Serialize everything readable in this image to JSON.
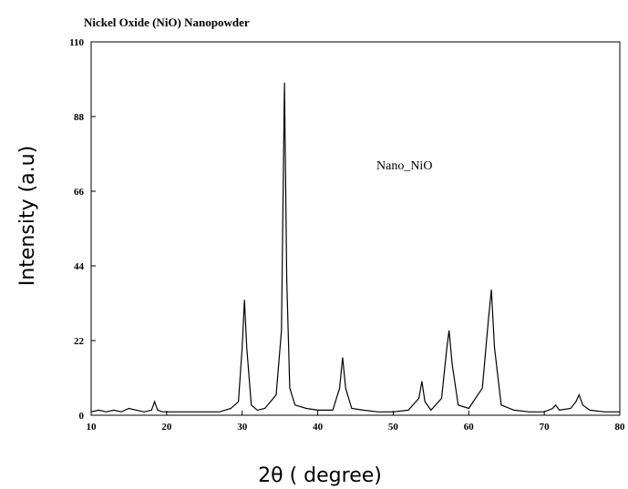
{
  "chart_data": {
    "type": "line",
    "title": "Nickel Oxide (NiO) Nanopowder",
    "annotation": "Nano_NiO",
    "xlabel": "2θ ( degree)",
    "ylabel": "Intensity (a.u)",
    "xlim": [
      10,
      80
    ],
    "ylim": [
      0,
      110
    ],
    "xticks": [
      10,
      20,
      30,
      40,
      50,
      60,
      70,
      80
    ],
    "yticks": [
      0,
      22,
      44,
      66,
      88,
      110
    ],
    "grid": false,
    "series": [
      {
        "x": [
          10,
          11,
          12,
          13,
          14,
          15,
          16,
          17,
          18,
          18.4,
          18.8,
          19.5,
          21,
          23,
          25,
          27,
          28.5,
          29.5,
          30.0,
          30.3,
          30.6,
          31.2,
          32,
          33,
          34.5,
          35.2,
          35.6,
          35.9,
          36.3,
          37,
          38.5,
          40,
          42,
          42.9,
          43.3,
          43.7,
          44.5,
          46,
          48,
          50,
          52,
          53.4,
          53.8,
          54.2,
          55,
          56.4,
          57.1,
          57.4,
          57.8,
          58.6,
          60,
          61.8,
          62.6,
          63.0,
          63.4,
          64.3,
          66,
          68,
          70,
          71.1,
          71.5,
          72,
          73.5,
          74.2,
          74.6,
          75.1,
          76,
          78,
          80
        ],
        "y": [
          1,
          1.5,
          1,
          1.5,
          1,
          2,
          1.5,
          1,
          1.5,
          4,
          1.5,
          1,
          1,
          1,
          1,
          1,
          2,
          4,
          20,
          34,
          20,
          3,
          1.5,
          2,
          6,
          25,
          98,
          40,
          8,
          3,
          2,
          1.5,
          1.5,
          8,
          17,
          8,
          2,
          1.5,
          1,
          1,
          1.5,
          5,
          10,
          4,
          1.5,
          5,
          20,
          25,
          15,
          3,
          2,
          8,
          28,
          37,
          20,
          3,
          1.5,
          1,
          1,
          2,
          3,
          1.5,
          2,
          4,
          6,
          3,
          1.5,
          1,
          1
        ]
      }
    ]
  }
}
